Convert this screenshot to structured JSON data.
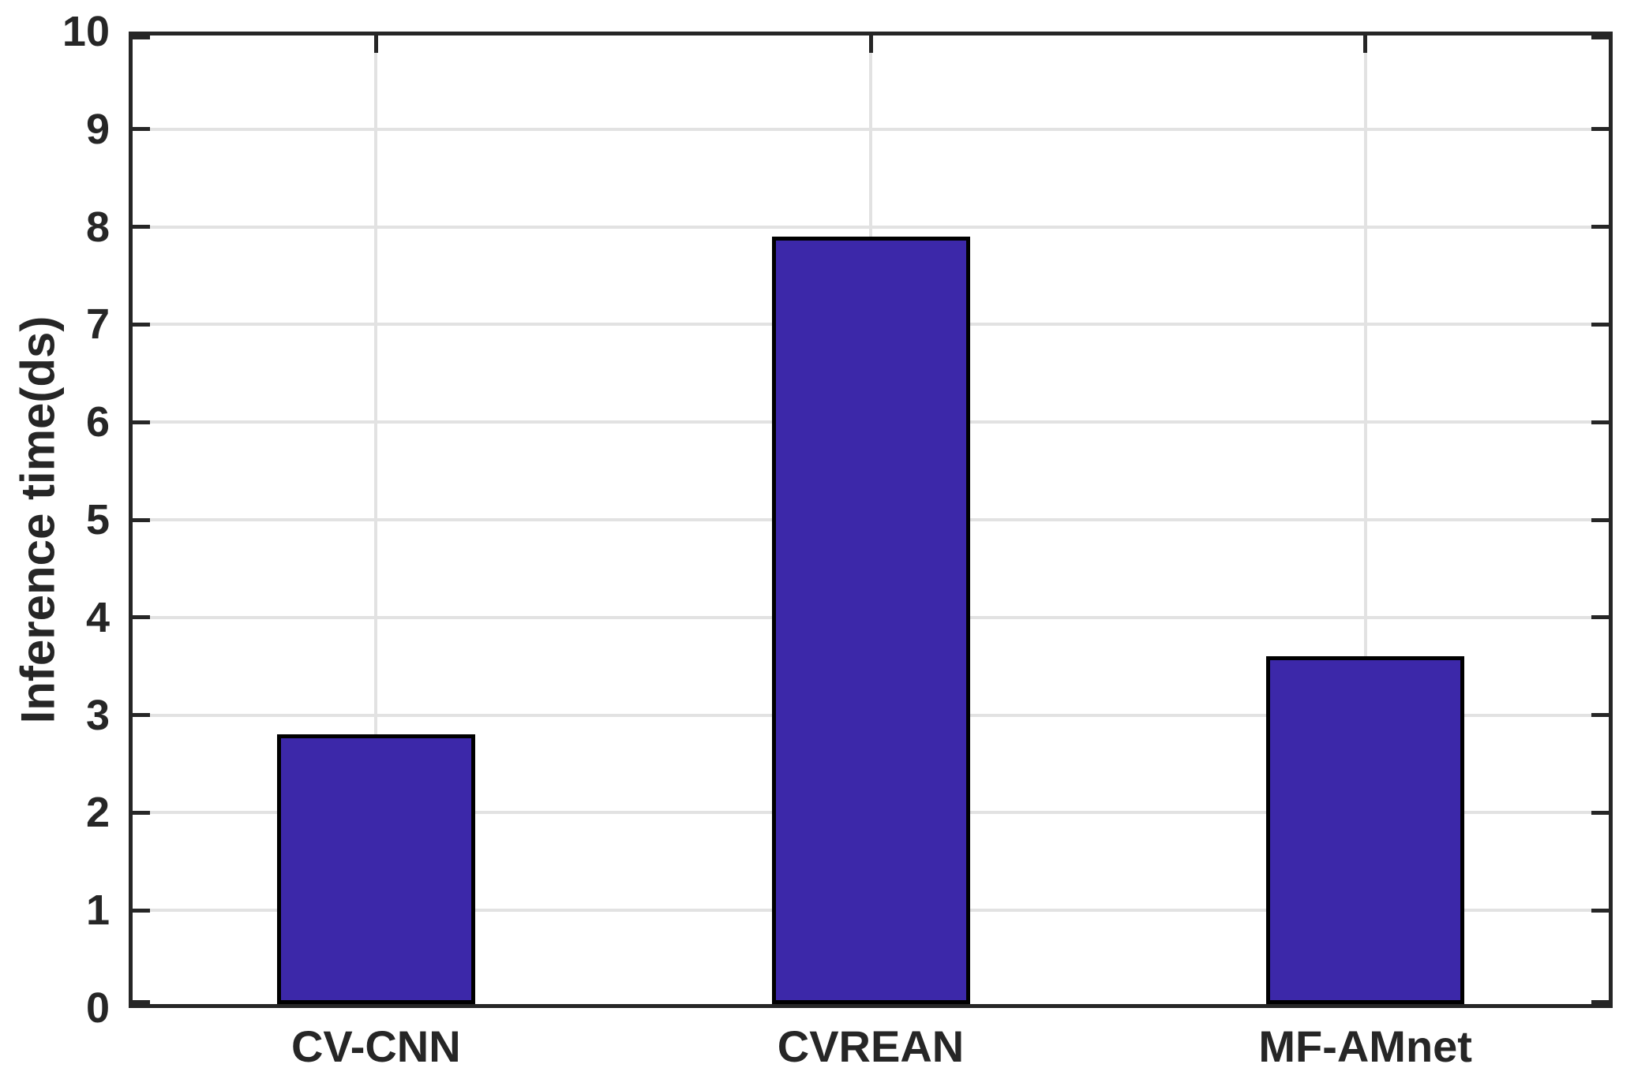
{
  "chart_data": {
    "type": "bar",
    "title": "",
    "categories": [
      "CV-CNN",
      "CVREAN",
      "MF-AMnet"
    ],
    "values": [
      2.8,
      7.9,
      3.6
    ],
    "xlabel": "",
    "ylabel": "Inference time(ds)",
    "ylim": [
      0,
      10
    ],
    "yticks": [
      0,
      1,
      2,
      3,
      4,
      5,
      6,
      7,
      8,
      9,
      10
    ],
    "grid": true,
    "legend_position": "none",
    "colors": {
      "bar_fill": "#3C28A9",
      "bar_edge": "#000000",
      "axis": "#262626",
      "grid": "#E2E2E2",
      "background": "#FFFFFF"
    }
  }
}
